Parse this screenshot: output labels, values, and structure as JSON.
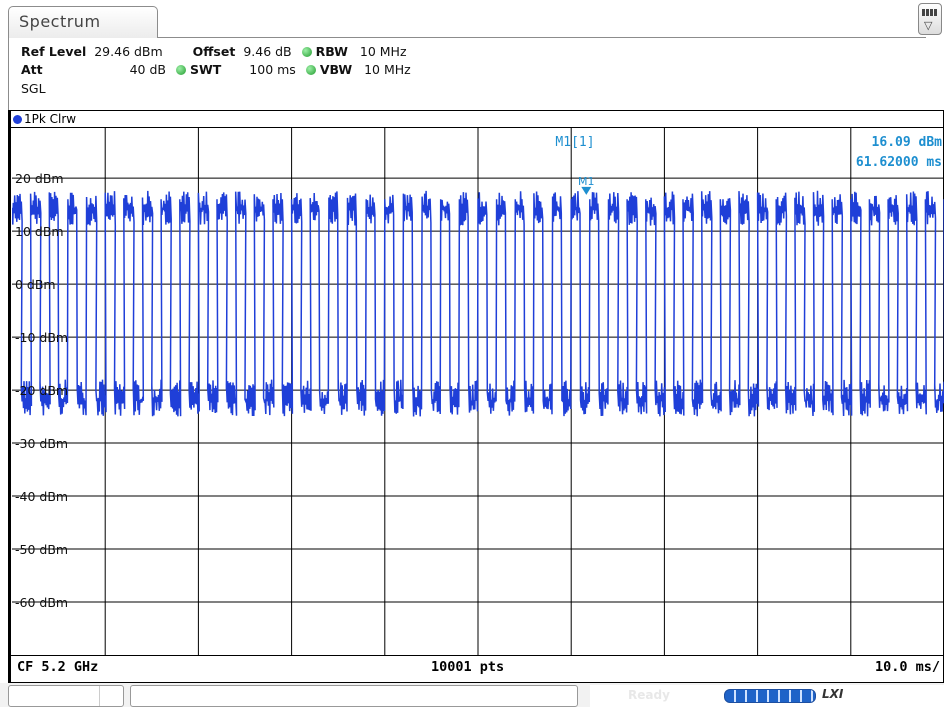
{
  "tab": {
    "label": "Spectrum"
  },
  "settings": {
    "ref_level_label": "Ref Level",
    "ref_level_value": "29.46 dBm",
    "offset_label": "Offset",
    "offset_value": "9.46 dB",
    "rbw_label": "RBW",
    "rbw_value": "10 MHz",
    "att_label": "Att",
    "att_value": "40 dB",
    "swt_label": "SWT",
    "swt_value": "100 ms",
    "vbw_label": "VBW",
    "vbw_value": "10 MHz",
    "mode": "SGL"
  },
  "trace": {
    "label": "1Pk Clrw",
    "color": "#1f3fd8"
  },
  "marker": {
    "name": "M1[1]",
    "tag": "M1",
    "level": "16.09 dBm",
    "time": "61.62000 ms",
    "x_ms": 61.62,
    "y_dbm": 16.09,
    "color": "#1e8fd0"
  },
  "chart_data": {
    "type": "line",
    "x_unit": "ms",
    "xlim": [
      0,
      100
    ],
    "ylim": [
      -70,
      29.46
    ],
    "y_tick_labels": [
      "20 dBm",
      "10 dBm",
      "0 dBm",
      "-10 dBm",
      "-20 dBm",
      "-30 dBm",
      "-40 dBm",
      "-50 dBm",
      "-60 dBm"
    ],
    "y_tick_values": [
      20,
      10,
      0,
      -10,
      -20,
      -30,
      -40,
      -50,
      -60
    ],
    "grid": true,
    "series": [
      {
        "burst_high_dbm": 16,
        "burst_low_dbm": -20,
        "burst_period_ms": 2.0,
        "burst_duty": 0.5
      }
    ]
  },
  "footer": {
    "center_freq": "CF 5.2 GHz",
    "points": "10001 pts",
    "time_div": "10.0 ms/"
  },
  "status": {
    "ready": "Ready",
    "lxi": "LXI"
  }
}
